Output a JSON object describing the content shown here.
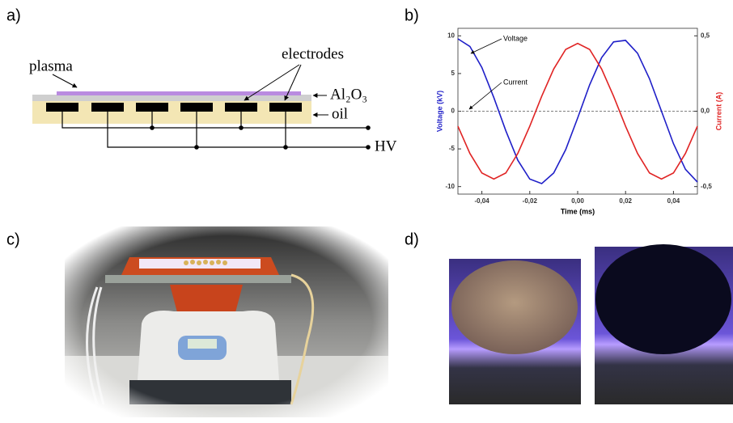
{
  "panel_labels": [
    "a)",
    "b)",
    "c)",
    "d)"
  ],
  "diagram": {
    "plasma": "plasma",
    "electrodes": "electrodes",
    "dielectric": "Al₂O₃",
    "oil": "oil",
    "supply": "HV"
  },
  "chart_data": {
    "type": "line",
    "xlabel": "Time (ms)",
    "ylabel": "Voltage (kV)",
    "y2label": "Current (A)",
    "x": [
      -0.05,
      -0.045,
      -0.04,
      -0.035,
      -0.03,
      -0.025,
      -0.02,
      -0.015,
      -0.01,
      -0.005,
      0,
      0.005,
      0.01,
      0.015,
      0.02,
      0.025,
      0.03,
      0.035,
      0.04,
      0.045,
      0.05
    ],
    "series": [
      {
        "name": "Voltage",
        "color": "#1f1fc8",
        "values": [
          9.6,
          8.6,
          5.8,
          1.8,
          -2.6,
          -6.5,
          -9.0,
          -9.6,
          -8.2,
          -5.1,
          -0.9,
          3.5,
          7.1,
          9.2,
          9.4,
          7.7,
          4.3,
          0,
          -4.3,
          -7.7,
          -9.4
        ]
      },
      {
        "name": "Current",
        "color": "#e02424",
        "axis": "y2",
        "values": [
          -0.1,
          -0.28,
          -0.41,
          -0.45,
          -0.41,
          -0.28,
          -0.1,
          0.1,
          0.28,
          0.41,
          0.45,
          0.41,
          0.28,
          0.1,
          -0.1,
          -0.28,
          -0.41,
          -0.45,
          -0.41,
          -0.28,
          -0.1
        ]
      }
    ],
    "xlim": [
      -0.05,
      0.05
    ],
    "xticks": [
      {
        "value": -0.04,
        "label": "-0,04"
      },
      {
        "value": -0.02,
        "label": "-0,02"
      },
      {
        "value": 0,
        "label": "0,00"
      },
      {
        "value": 0.02,
        "label": "0,02"
      },
      {
        "value": 0.04,
        "label": "0,04"
      }
    ],
    "ylim": [
      -11,
      11
    ],
    "yticks": [
      -10,
      -5,
      0,
      5,
      10
    ],
    "y2lim": [
      -0.55,
      0.55
    ],
    "y2ticks": [
      {
        "value": -0.5,
        "label": "-0,5"
      },
      {
        "value": 0,
        "label": "0,0"
      },
      {
        "value": 0.5,
        "label": "0,5"
      }
    ],
    "zero_line": true
  }
}
